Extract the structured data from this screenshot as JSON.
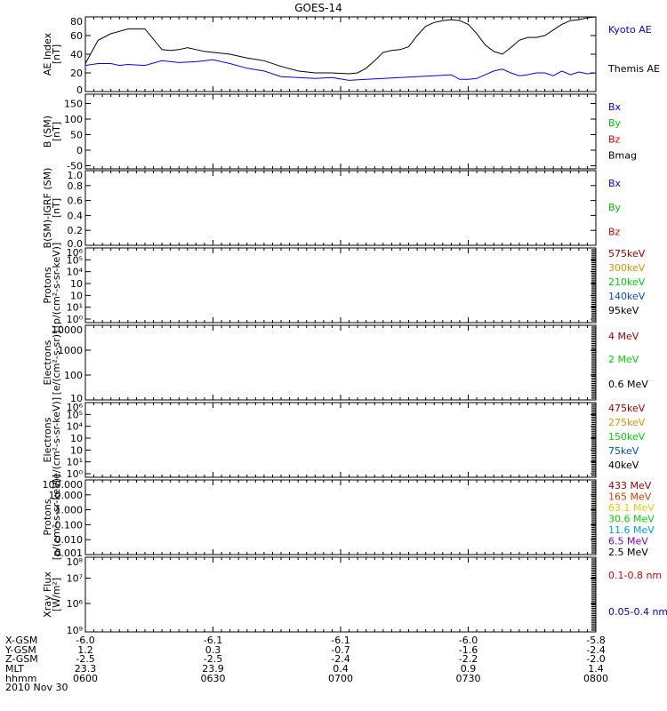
{
  "title": "GOES-14",
  "colors": {
    "black": "#000000",
    "blue": "#0000ff",
    "green": "#00c000",
    "red": "#d00000",
    "darkred": "#a00000",
    "orange": "#e09000",
    "brightgreen": "#00d000",
    "midblue": "#0050c0",
    "yellow": "#e0d000",
    "cyan": "#00a0d0",
    "purple": "#8000c0"
  },
  "chart_data": [
    {
      "type": "line",
      "id": "ae",
      "ylabel": [
        "AE Index",
        "[nT]"
      ],
      "ylim": [
        0,
        80
      ],
      "yticks": [
        0,
        20,
        40,
        60,
        80
      ],
      "scale": "linear",
      "legend": [
        {
          "text": "Kyoto AE",
          "color": "#0000ff"
        },
        {
          "text": "Themis AE",
          "color": "#000000"
        }
      ],
      "x_range": [
        0,
        120
      ],
      "series": [
        {
          "name": "Themis AE",
          "color": "#000000",
          "x": [
            0,
            3,
            6,
            10,
            14,
            18,
            20,
            22,
            24,
            26,
            28,
            30,
            34,
            38,
            42,
            46,
            50,
            54,
            58,
            62,
            64,
            66,
            68,
            70,
            72,
            74,
            76,
            78,
            80,
            82,
            84,
            86,
            88,
            90,
            92,
            94,
            96,
            98,
            100,
            102,
            104,
            106,
            108,
            110,
            112,
            114,
            116,
            118,
            120
          ],
          "y": [
            30,
            55,
            62,
            67,
            67,
            45,
            44,
            45,
            47,
            45,
            43,
            42,
            40,
            36,
            33,
            27,
            22,
            20,
            20,
            19,
            20,
            25,
            33,
            42,
            44,
            45,
            48,
            60,
            70,
            74,
            76,
            77,
            76,
            72,
            62,
            50,
            43,
            40,
            47,
            55,
            58,
            58,
            60,
            66,
            72,
            76,
            77,
            79,
            80
          ]
        },
        {
          "name": "Kyoto AE",
          "color": "#0000ff",
          "x": [
            0,
            3,
            6,
            8,
            10,
            14,
            18,
            22,
            26,
            30,
            34,
            38,
            42,
            46,
            50,
            54,
            58,
            62,
            66,
            70,
            74,
            78,
            82,
            86,
            88,
            90,
            92,
            94,
            96,
            98,
            100,
            102,
            104,
            106,
            108,
            110,
            112,
            114,
            116,
            118,
            120
          ],
          "y": [
            28,
            30,
            30,
            28,
            29,
            28,
            33,
            31,
            32,
            34,
            30,
            25,
            22,
            16,
            15,
            14,
            15,
            12,
            13,
            14,
            15,
            16,
            17,
            18,
            13,
            13,
            14,
            18,
            22,
            24,
            20,
            17,
            18,
            20,
            20,
            17,
            22,
            18,
            21,
            19,
            20
          ]
        }
      ]
    },
    {
      "type": "line",
      "id": "bsm",
      "ylabel": [
        "B (SM)",
        "[nT]"
      ],
      "ylim": [
        -60,
        180
      ],
      "yticks": [
        -50,
        0,
        50,
        100,
        150
      ],
      "scale": "linear",
      "legend": [
        {
          "text": "Bx",
          "color": "#0000ff"
        },
        {
          "text": "By",
          "color": "#00c000"
        },
        {
          "text": "Bz",
          "color": "#d00000"
        },
        {
          "text": "Bmag",
          "color": "#000000"
        }
      ],
      "series": []
    },
    {
      "type": "line",
      "id": "bigrf",
      "ylabel": [
        "B(SM)-IGRF (SM)",
        "[nT]"
      ],
      "ylim": [
        0,
        1
      ],
      "yticks": [
        "0.0",
        "0.2",
        "0.4",
        "0.6",
        "0.8",
        "1.0"
      ],
      "scale": "linear",
      "legend": [
        {
          "text": "Bx",
          "color": "#0000ff"
        },
        {
          "text": "By",
          "color": "#00c000"
        },
        {
          "text": "Bz",
          "color": "#d00000"
        }
      ],
      "series": []
    },
    {
      "type": "line",
      "id": "protons1",
      "ylabel": [
        "Protons",
        "[p/(cm²-s-sr-keV)]"
      ],
      "ylim": [
        -6.3,
        0
      ],
      "scale": "log",
      "yticklabels": [
        "10⁶",
        "10⁵",
        "10⁴",
        "10⁳",
        "10⁲",
        "10¹",
        "10⁰"
      ],
      "legend": [
        {
          "text": "575keV",
          "color": "#a00000"
        },
        {
          "text": "300keV",
          "color": "#e09000"
        },
        {
          "text": "210keV",
          "color": "#00d000"
        },
        {
          "text": "140keV",
          "color": "#0050c0"
        },
        {
          "text": "95keV",
          "color": "#000000"
        }
      ],
      "series": []
    },
    {
      "type": "line",
      "id": "electrons1",
      "ylabel": [
        "Electrons",
        "[e/(cm²-s-sr)]"
      ],
      "ylim": [
        10,
        10000
      ],
      "scale": "log",
      "yticklabels": [
        "10000",
        "1000",
        "100",
        "10"
      ],
      "legend": [
        {
          "text": "4 MeV",
          "color": "#a00000"
        },
        {
          "text": "2 MeV",
          "color": "#00d000"
        },
        {
          "text": "0.6 MeV",
          "color": "#000000"
        }
      ],
      "series": []
    },
    {
      "type": "line",
      "id": "electrons2",
      "ylabel": [
        "Electrons",
        "[e/(cm²-s-sr-keV)]"
      ],
      "ylim": [
        -6.3,
        0
      ],
      "scale": "log",
      "yticklabels": [
        "10⁶",
        "10⁵",
        "10⁴",
        "10⁳",
        "10⁲",
        "10¹",
        "10⁰"
      ],
      "legend": [
        {
          "text": "475keV",
          "color": "#a00000"
        },
        {
          "text": "275keV",
          "color": "#e09000"
        },
        {
          "text": "150keV",
          "color": "#00d000"
        },
        {
          "text": "75keV",
          "color": "#0050c0"
        },
        {
          "text": "40keV",
          "color": "#000000"
        }
      ],
      "series": []
    },
    {
      "type": "line",
      "id": "protons2",
      "ylabel": [
        "Protons",
        "[p/(cm²-s-sr-keV)]"
      ],
      "ylim": [
        0.001,
        100
      ],
      "scale": "log",
      "yticklabels": [
        "100.000",
        "10.000",
        "1.000",
        "0.100",
        "0.010",
        "0.001"
      ],
      "legend": [
        {
          "text": "433 MeV",
          "color": "#a00000"
        },
        {
          "text": "165 MeV",
          "color": "#d04000"
        },
        {
          "text": "63.1 MeV",
          "color": "#e0d000"
        },
        {
          "text": "30.6 MeV",
          "color": "#00d000"
        },
        {
          "text": "11.6 MeV",
          "color": "#00a0d0"
        },
        {
          "text": "6.5 MeV",
          "color": "#8000c0"
        },
        {
          "text": "2.5 MeV",
          "color": "#000000"
        }
      ],
      "series": []
    },
    {
      "type": "line",
      "id": "xray",
      "ylabel": [
        "Xray Flux",
        "[W/m²]"
      ],
      "ylim": [
        -9,
        -8
      ],
      "scale": "log",
      "yticklabels": [
        "10⁸",
        "10⁷",
        "10⁶",
        "10⁹"
      ],
      "legend": [
        {
          "text": "0.1-0.8 nm",
          "color": "#d00000"
        },
        {
          "text": "0.05-0.4 nm",
          "color": "#0000cc"
        }
      ],
      "series": []
    }
  ],
  "ephemeris": {
    "row_labels": [
      "X-GSM",
      "Y-GSM",
      "Z-GSM",
      "MLT",
      "hhmm"
    ],
    "columns": [
      [
        "-6.0",
        "1.2",
        "-2.5",
        "23.3",
        "0600"
      ],
      [
        "-6.1",
        "0.3",
        "-2.5",
        "23.9",
        "0630"
      ],
      [
        "-6.1",
        "-0.7",
        "-2.4",
        "0.4",
        "0700"
      ],
      [
        "-6.0",
        "-1.6",
        "-2.2",
        "0.9",
        "0730"
      ],
      [
        "-5.8",
        "-2.4",
        "-2.0",
        "1.4",
        "0800"
      ]
    ],
    "date": "2010 Nov 30"
  }
}
